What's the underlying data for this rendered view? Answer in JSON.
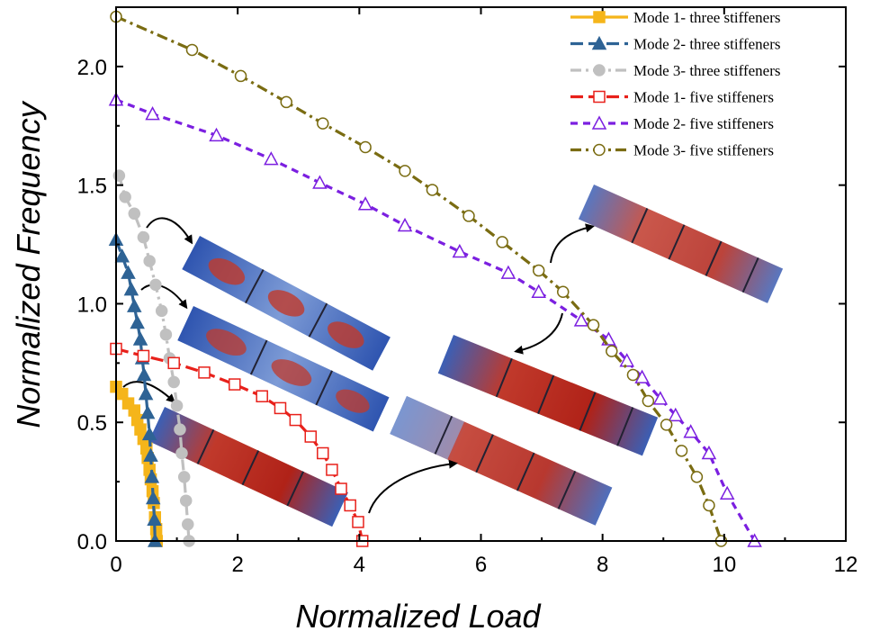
{
  "chart_data": {
    "type": "line",
    "xlabel": "Normalized Load",
    "ylabel": "Normalized Frequency",
    "xlim": [
      0,
      12
    ],
    "ylim": [
      0,
      2.25
    ],
    "x_ticks": [
      0,
      2,
      4,
      6,
      8,
      10,
      12
    ],
    "y_ticks": [
      0.0,
      0.5,
      1.0,
      1.5,
      2.0
    ],
    "x_tick_labels": [
      "0",
      "2",
      "4",
      "6",
      "8",
      "10",
      "12"
    ],
    "y_tick_labels": [
      "0.0",
      "0.5",
      "1.0",
      "1.5",
      "2.0"
    ],
    "grid": false,
    "legend_position": "top-right",
    "series": [
      {
        "name": "Mode 1- three stiffeners",
        "color": "#f5b51a",
        "dash": "solid",
        "marker": "square",
        "filled": true,
        "points": [
          [
            0.0,
            0.65
          ],
          [
            0.1,
            0.62
          ],
          [
            0.2,
            0.58
          ],
          [
            0.3,
            0.55
          ],
          [
            0.35,
            0.51
          ],
          [
            0.4,
            0.47
          ],
          [
            0.45,
            0.43
          ],
          [
            0.5,
            0.39
          ],
          [
            0.52,
            0.35
          ],
          [
            0.55,
            0.3
          ],
          [
            0.57,
            0.26
          ],
          [
            0.6,
            0.21
          ],
          [
            0.62,
            0.16
          ],
          [
            0.64,
            0.1
          ],
          [
            0.66,
            0.05
          ],
          [
            0.67,
            0.0
          ]
        ]
      },
      {
        "name": "Mode 2- three stiffeners",
        "color": "#2e6395",
        "dash": "longdash",
        "marker": "triangle",
        "filled": true,
        "points": [
          [
            0.0,
            1.27
          ],
          [
            0.1,
            1.2
          ],
          [
            0.2,
            1.13
          ],
          [
            0.25,
            1.06
          ],
          [
            0.3,
            0.99
          ],
          [
            0.35,
            0.92
          ],
          [
            0.4,
            0.85
          ],
          [
            0.43,
            0.77
          ],
          [
            0.46,
            0.7
          ],
          [
            0.49,
            0.62
          ],
          [
            0.52,
            0.54
          ],
          [
            0.55,
            0.45
          ],
          [
            0.57,
            0.36
          ],
          [
            0.59,
            0.27
          ],
          [
            0.61,
            0.18
          ],
          [
            0.63,
            0.09
          ],
          [
            0.64,
            0.0
          ]
        ]
      },
      {
        "name": "Mode 3- three stiffeners",
        "color": "#c0c0c0",
        "dash": "dashdot",
        "marker": "circle",
        "filled": true,
        "points": [
          [
            0.05,
            1.54
          ],
          [
            0.15,
            1.45
          ],
          [
            0.3,
            1.38
          ],
          [
            0.45,
            1.28
          ],
          [
            0.55,
            1.18
          ],
          [
            0.65,
            1.08
          ],
          [
            0.75,
            0.97
          ],
          [
            0.82,
            0.87
          ],
          [
            0.88,
            0.77
          ],
          [
            0.95,
            0.67
          ],
          [
            1.0,
            0.57
          ],
          [
            1.05,
            0.47
          ],
          [
            1.08,
            0.37
          ],
          [
            1.12,
            0.27
          ],
          [
            1.15,
            0.17
          ],
          [
            1.18,
            0.07
          ],
          [
            1.2,
            0.0
          ]
        ]
      },
      {
        "name": "Mode 1- five stiffeners",
        "color": "#e8201a",
        "dash": "longdash",
        "marker": "square",
        "filled": false,
        "points": [
          [
            0.0,
            0.81
          ],
          [
            0.45,
            0.78
          ],
          [
            0.95,
            0.75
          ],
          [
            1.45,
            0.71
          ],
          [
            1.95,
            0.66
          ],
          [
            2.4,
            0.61
          ],
          [
            2.7,
            0.56
          ],
          [
            2.95,
            0.51
          ],
          [
            3.2,
            0.44
          ],
          [
            3.4,
            0.37
          ],
          [
            3.55,
            0.3
          ],
          [
            3.7,
            0.22
          ],
          [
            3.85,
            0.15
          ],
          [
            3.98,
            0.08
          ],
          [
            4.05,
            0.0
          ]
        ]
      },
      {
        "name": "Mode 2- five stiffeners",
        "color": "#7b1fe0",
        "dash": "shortdash",
        "marker": "triangle",
        "filled": false,
        "points": [
          [
            0.0,
            1.86
          ],
          [
            0.6,
            1.8
          ],
          [
            1.65,
            1.71
          ],
          [
            2.55,
            1.61
          ],
          [
            3.35,
            1.51
          ],
          [
            4.1,
            1.42
          ],
          [
            4.75,
            1.33
          ],
          [
            5.65,
            1.22
          ],
          [
            6.45,
            1.13
          ],
          [
            6.95,
            1.05
          ],
          [
            7.65,
            0.93
          ],
          [
            8.1,
            0.85
          ],
          [
            8.4,
            0.76
          ],
          [
            8.65,
            0.69
          ],
          [
            8.95,
            0.6
          ],
          [
            9.2,
            0.53
          ],
          [
            9.45,
            0.46
          ],
          [
            9.75,
            0.37
          ],
          [
            10.05,
            0.2
          ],
          [
            10.5,
            0.0
          ]
        ]
      },
      {
        "name": "Mode 3- five stiffeners",
        "color": "#7a6c12",
        "dash": "dashdot",
        "marker": "circle",
        "filled": false,
        "points": [
          [
            0.0,
            2.21
          ],
          [
            1.25,
            2.07
          ],
          [
            2.05,
            1.96
          ],
          [
            2.8,
            1.85
          ],
          [
            3.4,
            1.76
          ],
          [
            4.1,
            1.66
          ],
          [
            4.75,
            1.56
          ],
          [
            5.2,
            1.48
          ],
          [
            5.8,
            1.37
          ],
          [
            6.35,
            1.26
          ],
          [
            6.95,
            1.14
          ],
          [
            7.35,
            1.05
          ],
          [
            7.85,
            0.91
          ],
          [
            8.15,
            0.8
          ],
          [
            8.5,
            0.7
          ],
          [
            8.75,
            0.59
          ],
          [
            9.05,
            0.49
          ],
          [
            9.3,
            0.38
          ],
          [
            9.55,
            0.27
          ],
          [
            9.75,
            0.15
          ],
          [
            9.95,
            0.0
          ]
        ]
      }
    ]
  }
}
